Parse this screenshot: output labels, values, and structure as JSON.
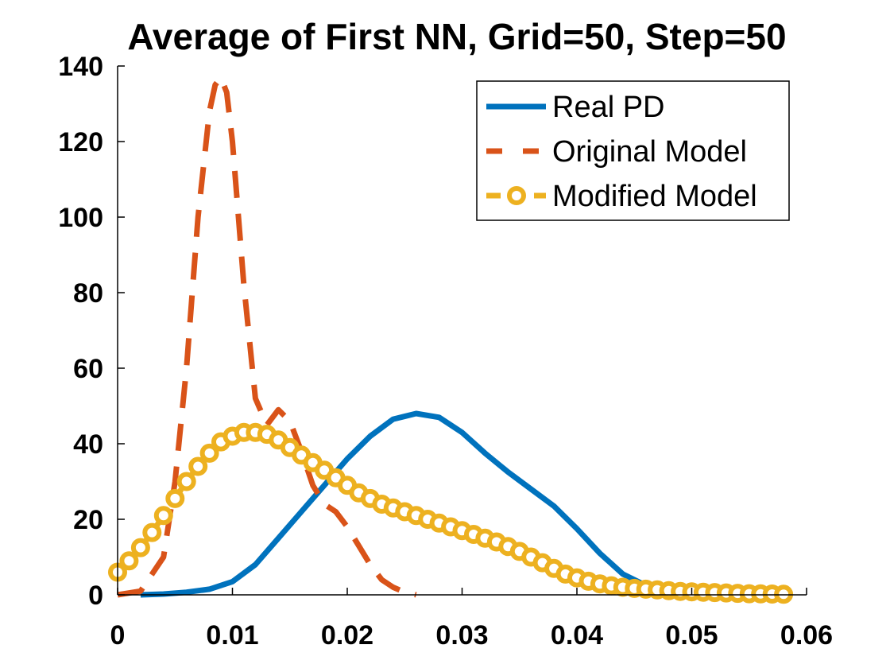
{
  "chart_data": {
    "type": "line",
    "title": "Average of First NN, Grid=50, Step=50",
    "xlabel": "",
    "ylabel": "",
    "xlim": [
      0,
      0.06
    ],
    "ylim": [
      0,
      140
    ],
    "x_ticks": [
      0,
      0.01,
      0.02,
      0.03,
      0.04,
      0.05,
      0.06
    ],
    "x_tick_labels": [
      "0",
      "0.01",
      "0.02",
      "0.03",
      "0.04",
      "0.05",
      "0.06"
    ],
    "y_ticks": [
      0,
      20,
      40,
      60,
      80,
      100,
      120,
      140
    ],
    "y_tick_labels": [
      "0",
      "20",
      "40",
      "60",
      "80",
      "100",
      "120",
      "140"
    ],
    "grid": false,
    "legend_position": "top-right",
    "series": [
      {
        "name": "Real PD",
        "color": "#0072BD",
        "style": "solid",
        "x": [
          0.002,
          0.004,
          0.006,
          0.008,
          0.01,
          0.012,
          0.014,
          0.016,
          0.018,
          0.02,
          0.022,
          0.024,
          0.026,
          0.028,
          0.03,
          0.032,
          0.034,
          0.036,
          0.038,
          0.04,
          0.042,
          0.044,
          0.046,
          0.048,
          0.05,
          0.052,
          0.054,
          0.056,
          0.058
        ],
        "y": [
          0,
          0.2,
          0.7,
          1.5,
          3.5,
          8,
          15,
          22,
          29,
          36,
          42,
          46.5,
          48,
          47,
          43,
          37.5,
          32.5,
          28,
          23.5,
          17.5,
          11,
          5.5,
          2.5,
          1.0,
          0.5,
          0.3,
          0.1,
          0.05,
          0
        ]
      },
      {
        "name": "Original Model",
        "color": "#D95319",
        "style": "dashed",
        "x": [
          0.0,
          0.002,
          0.004,
          0.005,
          0.006,
          0.007,
          0.008,
          0.0085,
          0.009,
          0.0095,
          0.01,
          0.011,
          0.012,
          0.013,
          0.014,
          0.015,
          0.016,
          0.017,
          0.018,
          0.019,
          0.02,
          0.021,
          0.022,
          0.023,
          0.024,
          0.025,
          0.026
        ],
        "y": [
          0,
          1,
          10,
          30,
          60,
          100,
          128,
          135,
          137,
          133,
          120,
          82,
          52,
          45,
          49,
          46,
          38,
          29,
          24,
          22,
          18,
          13,
          8,
          4,
          2,
          0.7,
          0
        ]
      },
      {
        "name": "Modified Model",
        "color": "#EDB120",
        "style": "dashed-circle",
        "x": [
          0.0,
          0.001,
          0.002,
          0.003,
          0.004,
          0.005,
          0.006,
          0.007,
          0.008,
          0.009,
          0.01,
          0.011,
          0.012,
          0.013,
          0.014,
          0.015,
          0.016,
          0.017,
          0.018,
          0.019,
          0.02,
          0.021,
          0.022,
          0.023,
          0.024,
          0.025,
          0.026,
          0.027,
          0.028,
          0.029,
          0.03,
          0.031,
          0.032,
          0.033,
          0.034,
          0.035,
          0.036,
          0.037,
          0.038,
          0.039,
          0.04,
          0.041,
          0.042,
          0.043,
          0.044,
          0.045,
          0.046,
          0.047,
          0.048,
          0.049,
          0.05,
          0.051,
          0.052,
          0.053,
          0.054,
          0.055,
          0.056,
          0.057,
          0.058
        ],
        "y": [
          6,
          9,
          12.5,
          16.5,
          21,
          25.5,
          30,
          34,
          37.5,
          40.5,
          42,
          43,
          43,
          42.5,
          41,
          39,
          37,
          35,
          33,
          31,
          29,
          27,
          25.5,
          24,
          23,
          22,
          21,
          20,
          19,
          18,
          17,
          16,
          15,
          14,
          12.8,
          11.5,
          10,
          8.5,
          7,
          5.5,
          4.5,
          3.6,
          2.9,
          2.4,
          2.0,
          1.7,
          1.5,
          1.3,
          1.1,
          0.9,
          0.8,
          0.7,
          0.6,
          0.5,
          0.4,
          0.3,
          0.25,
          0.2,
          0.15
        ]
      }
    ]
  }
}
